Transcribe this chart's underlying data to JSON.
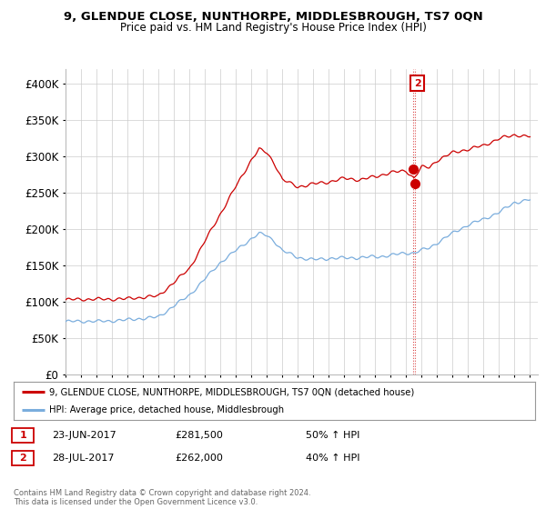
{
  "title": "9, GLENDUE CLOSE, NUNTHORPE, MIDDLESBROUGH, TS7 0QN",
  "subtitle": "Price paid vs. HM Land Registry's House Price Index (HPI)",
  "xlim_start": 1995.0,
  "xlim_end": 2025.5,
  "ylim": [
    0,
    420000
  ],
  "yticks": [
    0,
    50000,
    100000,
    150000,
    200000,
    250000,
    300000,
    350000,
    400000
  ],
  "ytick_labels": [
    "£0",
    "£50K",
    "£100K",
    "£150K",
    "£200K",
    "£250K",
    "£300K",
    "£350K",
    "£400K"
  ],
  "red_line_color": "#cc0000",
  "blue_line_color": "#7aaddd",
  "marker_color": "#cc0000",
  "annotation_box_color": "#cc0000",
  "transaction1_date": 2017.47,
  "transaction1_price": 281500,
  "transaction2_date": 2017.57,
  "transaction2_price": 262000,
  "legend_label_red": "9, GLENDUE CLOSE, NUNTHORPE, MIDDLESBROUGH, TS7 0QN (detached house)",
  "legend_label_blue": "HPI: Average price, detached house, Middlesbrough",
  "table_row1": [
    "1",
    "23-JUN-2017",
    "£281,500",
    "50% ↑ HPI"
  ],
  "table_row2": [
    "2",
    "28-JUL-2017",
    "£262,000",
    "40% ↑ HPI"
  ],
  "footer": "Contains HM Land Registry data © Crown copyright and database right 2024.\nThis data is licensed under the Open Government Licence v3.0.",
  "bg_color": "#ffffff",
  "grid_color": "#cccccc"
}
